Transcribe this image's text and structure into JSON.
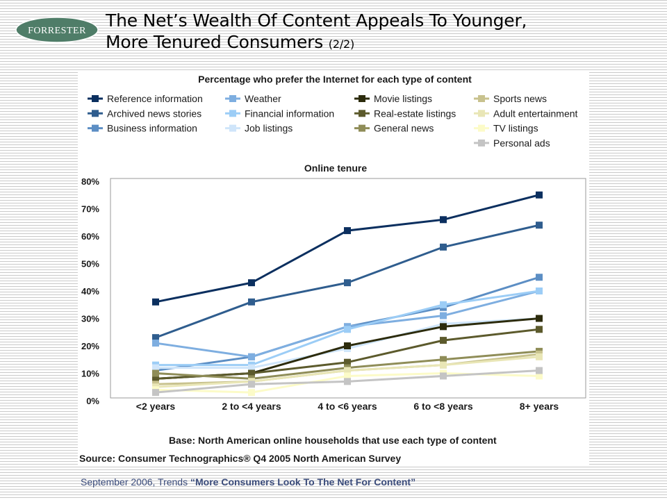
{
  "logo": {
    "text": "FORRESTER"
  },
  "title": {
    "main": "The Net’s Wealth Of Content Appeals To Younger, More Tenured Consumers",
    "line1": "The Net’s Wealth Of Content Appeals To Younger,",
    "line2": "More Tenured Consumers",
    "pager": "(2/2)"
  },
  "footer": {
    "prefix": "September 2006, Trends ",
    "report": "“More Consumers Look To The Net For Content”"
  },
  "chart_data": {
    "type": "line",
    "title": "Percentage who prefer the Internet for each type of content",
    "subtitle": "Online tenure",
    "xlabel": "",
    "ylabel": "",
    "categories": [
      "<2 years",
      "2 to <4 years",
      "4 to <6 years",
      "6 to <8 years",
      "8+ years"
    ],
    "ylim": [
      0,
      80
    ],
    "yticks": [
      "0%",
      "10%",
      "20%",
      "30%",
      "40%",
      "50%",
      "60%",
      "70%",
      "80%"
    ],
    "grid": false,
    "legend_position": "top",
    "series": [
      {
        "name": "Reference information",
        "color": "#0b2f5f",
        "values": [
          36,
          43,
          62,
          66,
          75
        ]
      },
      {
        "name": "Archived news stories",
        "color": "#2f5d8e",
        "values": [
          23,
          36,
          43,
          56,
          64
        ]
      },
      {
        "name": "Business information",
        "color": "#5c8ec4",
        "values": [
          11,
          16,
          27,
          34,
          45
        ]
      },
      {
        "name": "Weather",
        "color": "#7eaee0",
        "values": [
          21,
          16,
          27,
          31,
          40
        ]
      },
      {
        "name": "Financial information",
        "color": "#9ccdf6",
        "values": [
          13,
          13,
          26,
          35,
          40
        ]
      },
      {
        "name": "Job listings",
        "color": "#cfe5fa",
        "values": [
          12,
          12,
          19,
          28,
          30
        ]
      },
      {
        "name": "Movie listings",
        "color": "#2c2b0c",
        "values": [
          8,
          10,
          20,
          27,
          30
        ]
      },
      {
        "name": "Real-estate listings",
        "color": "#5c5a2c",
        "values": [
          8,
          10,
          14,
          22,
          26
        ]
      },
      {
        "name": "General news",
        "color": "#8f8d58",
        "values": [
          10,
          8,
          12,
          15,
          18
        ]
      },
      {
        "name": "Sports news",
        "color": "#c8c28e",
        "values": [
          6,
          7,
          11,
          13,
          17
        ]
      },
      {
        "name": "Adult entertainment",
        "color": "#e9e6b6",
        "values": [
          5,
          7,
          11,
          13,
          16
        ]
      },
      {
        "name": "TV listings",
        "color": "#fcfbc8",
        "values": [
          4,
          3,
          9,
          10,
          9
        ]
      },
      {
        "name": "Personal ads",
        "color": "#c4c4c4",
        "values": [
          3,
          6,
          7,
          9,
          11
        ]
      }
    ],
    "annotations": [
      "Base: North American online households that use each type of content",
      "Source: Consumer Technographics® Q4 2005 North American Survey"
    ]
  }
}
